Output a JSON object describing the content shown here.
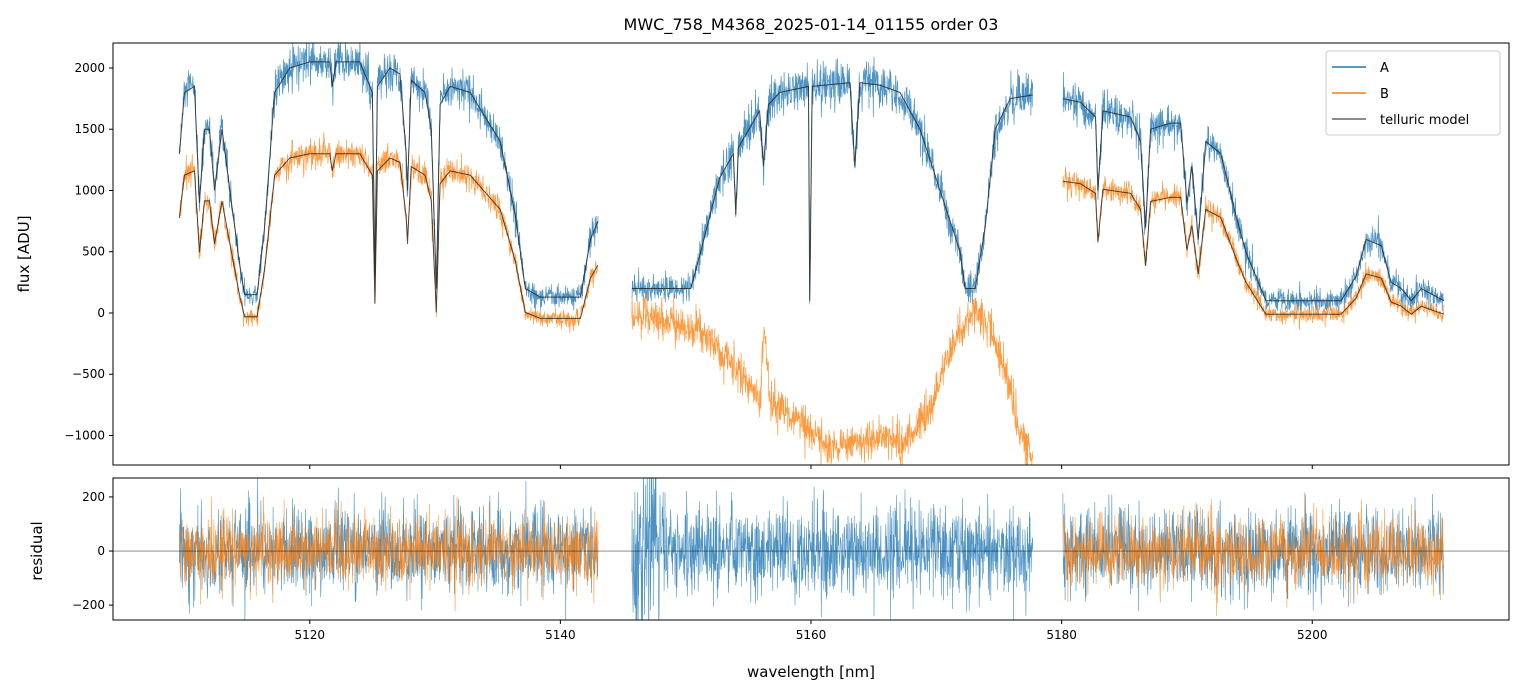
{
  "chart_data": {
    "type": "line",
    "title": "MWC_758_M4368_2025-01-14_01155  order 03",
    "xlabel": "wavelength [nm]",
    "xlim": [
      5104.3,
      5215.7
    ],
    "xticks": [
      5120,
      5140,
      5160,
      5180,
      5200
    ],
    "panels": [
      {
        "name": "flux",
        "ylabel": "flux [ADU]",
        "ylim": [
          -1241,
          2204
        ],
        "yticks": [
          2000,
          1500,
          1000,
          500,
          0,
          -500,
          -1000
        ],
        "ytick_labels": [
          "2000",
          "1500",
          "1000",
          "500",
          "0",
          "−500",
          "−1000"
        ]
      },
      {
        "name": "residual",
        "ylabel": "residual",
        "ylim": [
          -255,
          270
        ],
        "yticks": [
          200,
          0,
          -200
        ],
        "ytick_labels": [
          "200",
          "0",
          "−200"
        ],
        "zero_line": true
      }
    ],
    "legend": {
      "placement": "top-right",
      "entries": [
        {
          "label": "A",
          "color": "#1f77b4"
        },
        {
          "label": "B",
          "color": "#ff7f0e"
        },
        {
          "label": "telluric model",
          "color": "#555555"
        }
      ]
    },
    "series_colors": {
      "A": "#1f77b4",
      "B": "#ff7f0e",
      "model": "#222222"
    },
    "segments": [
      {
        "A_model": [
          [
            5109.6,
            1300
          ],
          [
            5110.0,
            1800
          ],
          [
            5110.8,
            1850
          ],
          [
            5111.2,
            900
          ],
          [
            5111.6,
            1500
          ],
          [
            5112.0,
            1500
          ],
          [
            5112.4,
            1000
          ],
          [
            5113.0,
            1500
          ],
          [
            5113.5,
            1100
          ],
          [
            5114.4,
            400
          ],
          [
            5114.8,
            150
          ],
          [
            5115.8,
            150
          ],
          [
            5116.4,
            700
          ],
          [
            5117.2,
            1800
          ],
          [
            5118.4,
            2000
          ],
          [
            5120.0,
            2050
          ],
          [
            5121.6,
            2050
          ],
          [
            5121.8,
            1850
          ],
          [
            5122.1,
            2050
          ],
          [
            5124.0,
            2050
          ],
          [
            5125.0,
            1800
          ],
          [
            5125.2,
            300
          ],
          [
            5125.4,
            1850
          ],
          [
            5126.4,
            2000
          ],
          [
            5127.2,
            1950
          ],
          [
            5127.7,
            1300
          ],
          [
            5127.8,
            1000
          ],
          [
            5128.1,
            1900
          ],
          [
            5129.2,
            1800
          ],
          [
            5129.7,
            1500
          ],
          [
            5130.1,
            200
          ],
          [
            5130.4,
            1700
          ],
          [
            5131.2,
            1850
          ],
          [
            5132.8,
            1800
          ],
          [
            5135.2,
            1400
          ],
          [
            5136.4,
            800
          ],
          [
            5137.2,
            200
          ],
          [
            5138.4,
            130
          ],
          [
            5141.6,
            130
          ],
          [
            5142.4,
            600
          ],
          [
            5143.0,
            750
          ]
        ],
        "B_from_A": {
          "scale": 0.7,
          "offset": -135
        },
        "B_has_model": true,
        "noise_A": 70,
        "noise_B": 60,
        "resid_A": 80,
        "resid_B": 65
      },
      {
        "A_model": [
          [
            5145.7,
            200
          ],
          [
            5150.4,
            200
          ],
          [
            5151.2,
            500
          ],
          [
            5152.7,
            1100
          ],
          [
            5153.8,
            1300
          ],
          [
            5154.0,
            800
          ],
          [
            5154.2,
            1350
          ],
          [
            5155.9,
            1650
          ],
          [
            5156.2,
            1200
          ],
          [
            5156.6,
            1700
          ],
          [
            5157.5,
            1800
          ],
          [
            5159.8,
            1850
          ],
          [
            5159.9,
            100
          ],
          [
            5160.1,
            1850
          ],
          [
            5163.1,
            1880
          ],
          [
            5163.5,
            1200
          ],
          [
            5163.9,
            1880
          ],
          [
            5165.5,
            1860
          ],
          [
            5167.1,
            1800
          ],
          [
            5168.7,
            1500
          ],
          [
            5170.3,
            1000
          ],
          [
            5171.9,
            500
          ],
          [
            5172.3,
            200
          ],
          [
            5173.1,
            200
          ],
          [
            5173.9,
            700
          ],
          [
            5174.7,
            1500
          ],
          [
            5175.9,
            1750
          ],
          [
            5177.7,
            1780
          ]
        ],
        "B_curve": [
          [
            5145.7,
            0
          ],
          [
            5151.2,
            -150
          ],
          [
            5152.7,
            -300
          ],
          [
            5155.9,
            -700
          ],
          [
            5156.3,
            -150
          ],
          [
            5156.7,
            -700
          ],
          [
            5159.1,
            -900
          ],
          [
            5161.5,
            -1100
          ],
          [
            5165.5,
            -1000
          ],
          [
            5167.1,
            -1100
          ],
          [
            5169.5,
            -800
          ],
          [
            5171.1,
            -300
          ],
          [
            5172.7,
            0
          ],
          [
            5174.3,
            -100
          ],
          [
            5175.5,
            -500
          ],
          [
            5176.7,
            -1000
          ],
          [
            5177.7,
            -1200
          ]
        ],
        "B_has_model": false,
        "noise_A": 80,
        "noise_B": 80,
        "resid_A": 85,
        "resid_B": null
      },
      {
        "A_model": [
          [
            5180.1,
            1750
          ],
          [
            5181.5,
            1720
          ],
          [
            5182.7,
            1600
          ],
          [
            5182.9,
            1000
          ],
          [
            5183.3,
            1650
          ],
          [
            5185.5,
            1600
          ],
          [
            5186.3,
            1400
          ],
          [
            5186.7,
            700
          ],
          [
            5187.1,
            1500
          ],
          [
            5188.7,
            1550
          ],
          [
            5189.5,
            1550
          ],
          [
            5190.0,
            900
          ],
          [
            5190.4,
            1200
          ],
          [
            5190.9,
            600
          ],
          [
            5191.5,
            1400
          ],
          [
            5192.7,
            1300
          ],
          [
            5193.9,
            800
          ],
          [
            5194.7,
            500
          ],
          [
            5195.5,
            300
          ],
          [
            5196.3,
            100
          ],
          [
            5202.3,
            100
          ],
          [
            5203.5,
            300
          ],
          [
            5204.3,
            600
          ],
          [
            5205.5,
            550
          ],
          [
            5206.3,
            250
          ],
          [
            5207.1,
            200
          ],
          [
            5207.9,
            100
          ],
          [
            5208.7,
            200
          ],
          [
            5210.5,
            100
          ]
        ],
        "B_from_A": {
          "scale": 0.658,
          "offset": -76
        },
        "B_has_model": true,
        "noise_A": 70,
        "noise_B": 55,
        "resid_A": 80,
        "resid_B": 65
      }
    ]
  }
}
